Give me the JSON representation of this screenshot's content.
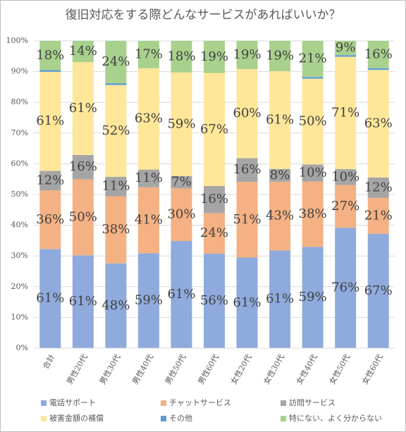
{
  "chart_data": {
    "type": "bar",
    "stacked": "percent",
    "title": "復旧対応をする際どんなサービスがあればいいか？",
    "categories": [
      "合計",
      "男性20代",
      "男性30代",
      "男性40代",
      "男性50代",
      "男性60代",
      "女性20代",
      "女性30代",
      "女性40代",
      "女性50代",
      "女性60代"
    ],
    "series": [
      {
        "name": "電話サポート",
        "color": "#8faadc",
        "values": [
          61,
          61,
          48,
          59,
          61,
          56,
          61,
          61,
          59,
          76,
          67
        ],
        "value_labels": [
          "61%",
          "61%",
          "48%",
          "59%",
          "61%",
          "56%",
          "61%",
          "61%",
          "59%",
          "76%",
          "67%"
        ]
      },
      {
        "name": "チャットサービス",
        "color": "#f4b183",
        "values": [
          36,
          50,
          38,
          41,
          30,
          24,
          51,
          43,
          38,
          27,
          21
        ],
        "value_labels": [
          "36%",
          "50%",
          "38%",
          "41%",
          "30%",
          "24%",
          "51%",
          "43%",
          "38%",
          "27%",
          "21%"
        ]
      },
      {
        "name": "訪問サービス",
        "color": "#a5a5a5",
        "values": [
          12,
          16,
          11,
          11,
          7,
          16,
          16,
          8,
          10,
          10,
          12
        ],
        "value_labels": [
          "12%",
          "16%",
          "11%",
          "11%",
          "7%",
          "16%",
          "16%",
          "8%",
          "10%",
          "10%",
          "12%"
        ]
      },
      {
        "name": "被害金額の補償",
        "color": "#ffe699",
        "values": [
          61,
          61,
          52,
          63,
          59,
          67,
          60,
          61,
          50,
          71,
          63
        ],
        "value_labels": [
          "61%",
          "61%",
          "52%",
          "63%",
          "59%",
          "67%",
          "60%",
          "61%",
          "50%",
          "71%",
          "63%"
        ]
      },
      {
        "name": "その他",
        "color": "#5b9bd5",
        "values": [
          1,
          0,
          1,
          0,
          0,
          0,
          0,
          0,
          1,
          1,
          1
        ]
      },
      {
        "name": "特にない、よく分からない",
        "color": "#a9d18e",
        "values": [
          18,
          14,
          24,
          17,
          18,
          19,
          19,
          19,
          21,
          9,
          16
        ],
        "value_labels": [
          "18%",
          "14%",
          "24%",
          "17%",
          "18%",
          "19%",
          "19%",
          "19%",
          "21%",
          "9%",
          "16%"
        ]
      }
    ],
    "ylim": [
      0,
      100
    ],
    "yticks": [
      {
        "value": 0,
        "label": "0%"
      },
      {
        "value": 10,
        "label": "10%"
      },
      {
        "value": 20,
        "label": "20%"
      },
      {
        "value": 30,
        "label": "30%"
      },
      {
        "value": 40,
        "label": "40%"
      },
      {
        "value": 50,
        "label": "50%"
      },
      {
        "value": 60,
        "label": "60%"
      },
      {
        "value": 70,
        "label": "70%"
      },
      {
        "value": 80,
        "label": "80%"
      },
      {
        "value": 90,
        "label": "90%"
      },
      {
        "value": 100,
        "label": "100%"
      }
    ],
    "grid": true,
    "legend": "bottom"
  }
}
